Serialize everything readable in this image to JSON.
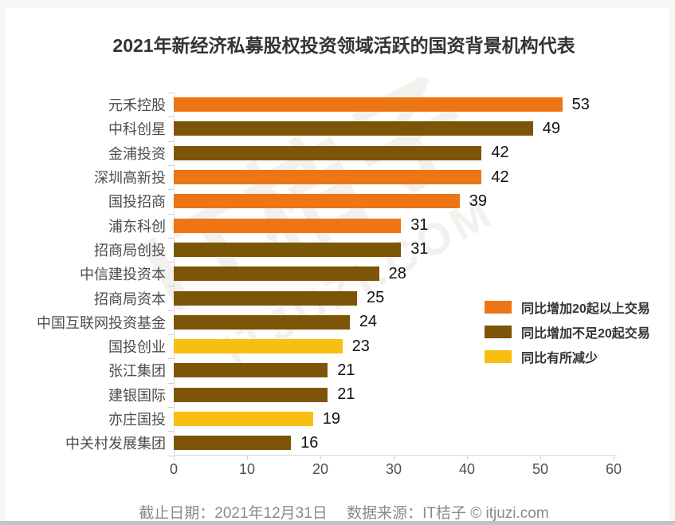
{
  "page": {
    "title": "2021年新经济私募股权投资领域活跃的国资背景机构代表",
    "footer": "截止日期：2021年12月31日　 数据来源：IT桔子 © itjuzi.com",
    "watermark": {
      "line1": "IT桔子",
      "line2": "ITJUZI.COM"
    }
  },
  "colors": {
    "increase_20_plus": "#ED7514",
    "increase_under_20": "#7D5506",
    "decrease": "#F8BE12"
  },
  "legend": {
    "position": "right",
    "items": [
      {
        "label": "同比增加20起以上交易",
        "color_key": "increase_20_plus"
      },
      {
        "label": "同比增加不足20起交易",
        "color_key": "increase_under_20"
      },
      {
        "label": "同比有所减少",
        "color_key": "decrease"
      }
    ]
  },
  "chart_data": {
    "type": "bar",
    "orientation": "horizontal",
    "title": "2021年新经济私募股权投资领域活跃的国资背景机构代表",
    "categories": [
      "元禾控股",
      "中科创星",
      "金浦投资",
      "深圳高新投",
      "国投招商",
      "浦东科创",
      "招商局创投",
      "中信建投资本",
      "招商局资本",
      "中国互联网投资基金",
      "国投创业",
      "张江集团",
      "建银国际",
      "亦庄国投",
      "中关村发展集团"
    ],
    "values": [
      53,
      49,
      42,
      42,
      39,
      31,
      31,
      28,
      25,
      24,
      23,
      21,
      21,
      19,
      16
    ],
    "bar_color_keys": [
      "increase_20_plus",
      "increase_under_20",
      "increase_under_20",
      "increase_20_plus",
      "increase_20_plus",
      "increase_20_plus",
      "increase_under_20",
      "increase_under_20",
      "increase_under_20",
      "increase_under_20",
      "decrease",
      "increase_under_20",
      "increase_under_20",
      "decrease",
      "increase_under_20"
    ],
    "x_ticks": [
      0,
      10,
      20,
      30,
      40,
      50,
      60
    ],
    "xlim": [
      0,
      60
    ],
    "xlabel": "",
    "ylabel": "",
    "grid": false,
    "legend_position": "right"
  }
}
